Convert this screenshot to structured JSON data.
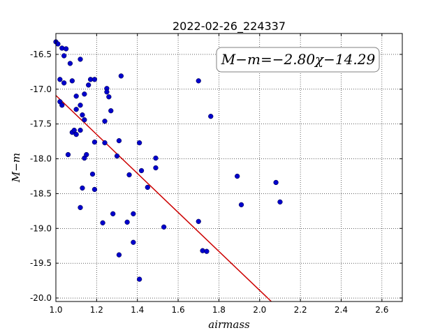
{
  "chart_data": {
    "type": "scatter",
    "title": "2022-02-26_224337",
    "xlabel": "airmass",
    "ylabel": "M−m",
    "xlim": [
      1.0,
      2.7
    ],
    "ylim": [
      -20.05,
      -16.2
    ],
    "xticks": [
      "1.0",
      "1.2",
      "1.4",
      "1.6",
      "1.8",
      "2.0",
      "2.2",
      "2.4",
      "2.6"
    ],
    "yticks": [
      "-16.5",
      "-17.0",
      "-17.5",
      "-18.0",
      "-18.5",
      "-19.0",
      "-19.5",
      "-20.0"
    ],
    "grid": true,
    "annotation": "M−m=−2.80χ−14.29",
    "fit": {
      "slope": -2.8,
      "intercept": -14.29,
      "color": "#cc0000"
    },
    "marker_color": "#0000cc",
    "points": [
      [
        1.0,
        -16.32
      ],
      [
        1.01,
        -16.35
      ],
      [
        1.02,
        -17.18
      ],
      [
        1.03,
        -16.41
      ],
      [
        1.04,
        -16.52
      ],
      [
        1.05,
        -16.42
      ],
      [
        1.07,
        -16.63
      ],
      [
        1.08,
        -16.88
      ],
      [
        1.02,
        -16.86
      ],
      [
        1.04,
        -16.91
      ],
      [
        1.03,
        -17.23
      ],
      [
        1.1,
        -17.1
      ],
      [
        1.1,
        -17.29
      ],
      [
        1.12,
        -16.57
      ],
      [
        1.12,
        -17.23
      ],
      [
        1.13,
        -17.37
      ],
      [
        1.14,
        -17.44
      ],
      [
        1.14,
        -17.07
      ],
      [
        1.16,
        -16.94
      ],
      [
        1.17,
        -16.86
      ],
      [
        1.19,
        -16.86
      ],
      [
        1.08,
        -17.62
      ],
      [
        1.09,
        -17.59
      ],
      [
        1.1,
        -17.65
      ],
      [
        1.12,
        -17.59
      ],
      [
        1.06,
        -17.94
      ],
      [
        1.14,
        -17.99
      ],
      [
        1.15,
        -17.94
      ],
      [
        1.19,
        -17.76
      ],
      [
        1.24,
        -17.46
      ],
      [
        1.24,
        -17.77
      ],
      [
        1.25,
        -16.99
      ],
      [
        1.25,
        -17.04
      ],
      [
        1.26,
        -17.11
      ],
      [
        1.27,
        -17.31
      ],
      [
        1.32,
        -16.81
      ],
      [
        1.31,
        -17.74
      ],
      [
        1.3,
        -17.96
      ],
      [
        1.18,
        -18.22
      ],
      [
        1.19,
        -18.44
      ],
      [
        1.13,
        -18.42
      ],
      [
        1.12,
        -18.7
      ],
      [
        1.23,
        -18.92
      ],
      [
        1.28,
        -18.79
      ],
      [
        1.31,
        -19.38
      ],
      [
        1.35,
        -18.91
      ],
      [
        1.36,
        -18.23
      ],
      [
        1.38,
        -18.79
      ],
      [
        1.38,
        -19.2
      ],
      [
        1.41,
        -17.77
      ],
      [
        1.42,
        -18.17
      ],
      [
        1.45,
        -18.41
      ],
      [
        1.49,
        -17.99
      ],
      [
        1.49,
        -18.13
      ],
      [
        1.53,
        -18.98
      ],
      [
        1.41,
        -19.73
      ],
      [
        1.7,
        -16.88
      ],
      [
        1.76,
        -17.39
      ],
      [
        1.7,
        -18.9
      ],
      [
        1.72,
        -19.32
      ],
      [
        1.74,
        -19.33
      ],
      [
        1.89,
        -18.25
      ],
      [
        1.91,
        -18.66
      ],
      [
        2.08,
        -18.34
      ],
      [
        2.1,
        -18.62
      ]
    ]
  }
}
